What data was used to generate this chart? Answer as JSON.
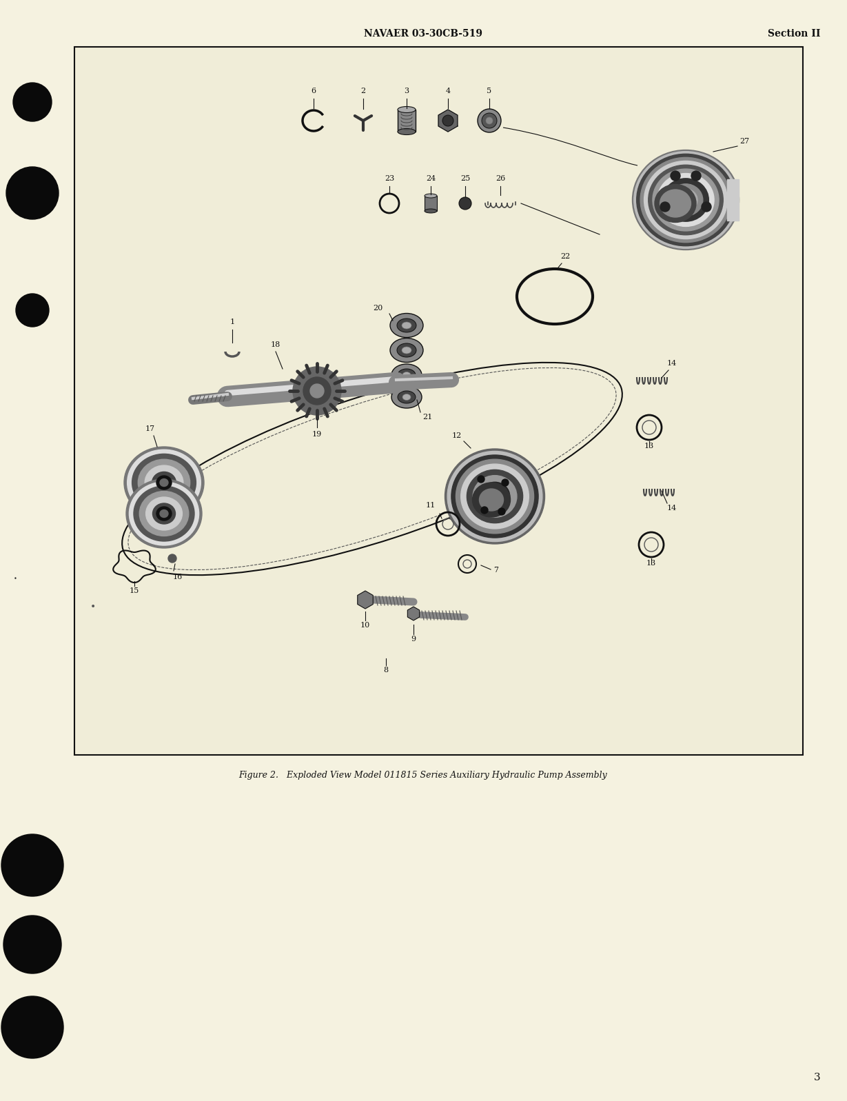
{
  "bg_color": "#f5f2e0",
  "box_color": "#f0edd8",
  "header_left": "NAVAER 03-30CB-519",
  "header_right": "Section II",
  "footer_caption": "Figure 2.   Exploded View Model 011815 Series Auxiliary Hydraulic Pump Assembly",
  "page_number": "3",
  "dark": "#111111",
  "mid": "#555555",
  "light": "#999999",
  "chrome_dark": "#333333",
  "chrome_mid": "#777777",
  "chrome_light": "#bbbbbb",
  "chrome_bright": "#dddddd"
}
